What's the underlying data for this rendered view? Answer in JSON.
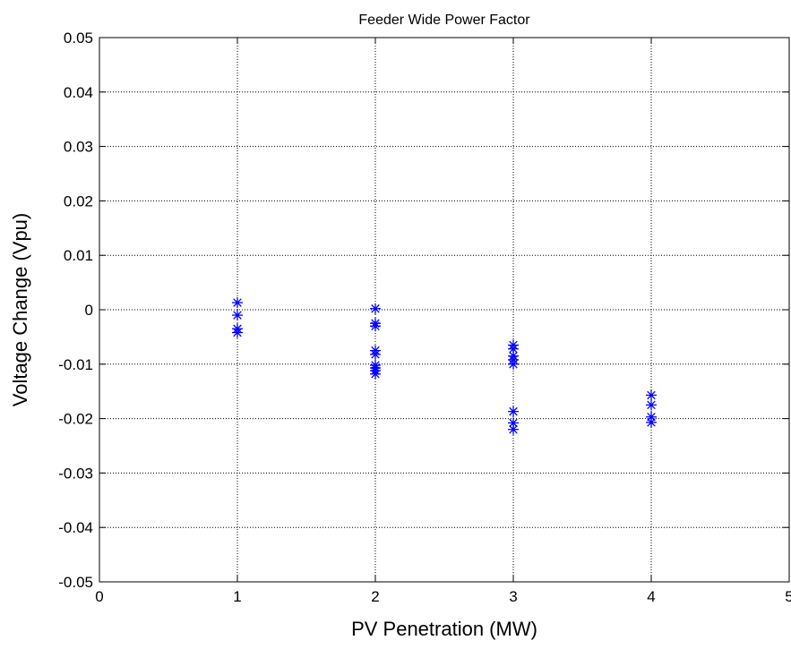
{
  "chart_data": {
    "type": "scatter",
    "title": "Feeder Wide Power Factor",
    "xlabel": "PV Penetration (MW)",
    "ylabel": "Voltage Change (Vpu)",
    "xlim": [
      0,
      5
    ],
    "ylim": [
      -0.05,
      0.05
    ],
    "xticks": [
      0,
      1,
      2,
      3,
      4,
      5
    ],
    "xtick_labels": [
      "0",
      "1",
      "2",
      "3",
      "4",
      "5"
    ],
    "yticks": [
      0.05,
      0.04,
      0.03,
      0.02,
      0.01,
      0,
      -0.01,
      -0.02,
      -0.03,
      -0.04,
      -0.05
    ],
    "ytick_labels": [
      "0.05",
      "0.04",
      "0.03",
      "0.02",
      "0.01",
      "0",
      "-0.01",
      "-0.02",
      "-0.03",
      "-0.04",
      "-0.05"
    ],
    "grid": true,
    "marker": "asterisk",
    "marker_color": "#0000ff",
    "series": [
      {
        "points": [
          {
            "x": 1,
            "y": 0.0013
          },
          {
            "x": 1,
            "y": -0.001
          },
          {
            "x": 1,
            "y": -0.0035
          },
          {
            "x": 1,
            "y": -0.0042
          },
          {
            "x": 2,
            "y": 0.0002
          },
          {
            "x": 2,
            "y": -0.0025
          },
          {
            "x": 2,
            "y": -0.003
          },
          {
            "x": 2,
            "y": -0.0075
          },
          {
            "x": 2,
            "y": -0.0082
          },
          {
            "x": 2,
            "y": -0.0102
          },
          {
            "x": 2,
            "y": -0.0107
          },
          {
            "x": 2,
            "y": -0.0112
          },
          {
            "x": 2,
            "y": -0.0118
          },
          {
            "x": 3,
            "y": -0.0065
          },
          {
            "x": 3,
            "y": -0.0072
          },
          {
            "x": 3,
            "y": -0.0085
          },
          {
            "x": 3,
            "y": -0.0092
          },
          {
            "x": 3,
            "y": -0.01
          },
          {
            "x": 3,
            "y": -0.0187
          },
          {
            "x": 3,
            "y": -0.0208
          },
          {
            "x": 3,
            "y": -0.022
          },
          {
            "x": 4,
            "y": -0.0157
          },
          {
            "x": 4,
            "y": -0.0175
          },
          {
            "x": 4,
            "y": -0.0197
          },
          {
            "x": 4,
            "y": -0.0207
          }
        ]
      }
    ]
  }
}
